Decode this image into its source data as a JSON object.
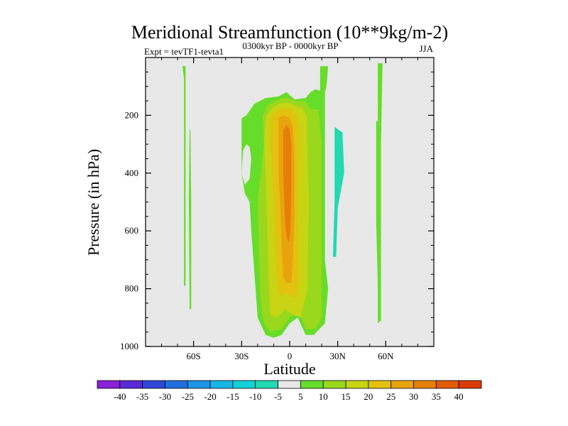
{
  "chart_data": {
    "type": "contour",
    "title": "Meridional Streamfunction (10**9kg/m-2)",
    "subtitle_left": "Expt = tevTF1-tevta1",
    "subtitle_center": "0300kyr BP - 0000kyr BP",
    "subtitle_right": "JJA",
    "xlabel": "Latitude",
    "ylabel": "Pressure (in hPa)",
    "xlim": [
      -90,
      90
    ],
    "ylim": [
      1000,
      0
    ],
    "xticks": [
      {
        "value": -60,
        "label": "60S"
      },
      {
        "value": -30,
        "label": "30S"
      },
      {
        "value": 0,
        "label": "0"
      },
      {
        "value": 30,
        "label": "30N"
      },
      {
        "value": 60,
        "label": "60N"
      }
    ],
    "yticks": [
      {
        "value": 200,
        "label": "200"
      },
      {
        "value": 400,
        "label": "400"
      },
      {
        "value": 600,
        "label": "600"
      },
      {
        "value": 800,
        "label": "800"
      },
      {
        "value": 1000,
        "label": "1000"
      }
    ],
    "background_color": "#e8e8e8",
    "colorbar": {
      "labels": [
        "-40",
        "-35",
        "-30",
        "-25",
        "-20",
        "-15",
        "-10",
        "-5",
        "5",
        "10",
        "15",
        "20",
        "25",
        "30",
        "35",
        "40"
      ],
      "colors": [
        "#8a22d8",
        "#5a2ad6",
        "#2f47d8",
        "#1f6fe0",
        "#1f95e6",
        "#18b5e6",
        "#10d2d8",
        "#22d9b2",
        "#e8e8e8",
        "#66dd2b",
        "#9ad81d",
        "#c8d414",
        "#e2c20f",
        "#e9a30d",
        "#e67f0a",
        "#e35a08",
        "#dd3a06"
      ]
    },
    "contours": [
      {
        "level": "5",
        "color": "#66dd2b",
        "points": [
          [
            -67,
            30
          ],
          [
            -66,
            70
          ],
          [
            -66,
            300
          ],
          [
            -66,
            790
          ],
          [
            -65,
            790
          ],
          [
            -65,
            300
          ],
          [
            -65,
            30
          ]
        ]
      },
      {
        "level": "5",
        "color": "#66dd2b",
        "points": [
          [
            -62.5,
            250
          ],
          [
            -63,
            500
          ],
          [
            -62.5,
            870
          ],
          [
            -61.5,
            870
          ],
          [
            -61.5,
            500
          ],
          [
            -62,
            250
          ]
        ]
      },
      {
        "level": "5",
        "color": "#66dd2b",
        "points": [
          [
            -30,
            210
          ],
          [
            -27,
            200
          ],
          [
            -22,
            160
          ],
          [
            -15,
            140
          ],
          [
            -7,
            135
          ],
          [
            -2,
            120
          ],
          [
            0,
            130
          ],
          [
            3,
            145
          ],
          [
            10,
            140
          ],
          [
            13,
            120
          ],
          [
            16,
            110
          ],
          [
            22,
            120
          ],
          [
            22,
            700
          ],
          [
            24,
            800
          ],
          [
            22,
            920
          ],
          [
            15,
            960
          ],
          [
            10,
            960
          ],
          [
            5,
            900
          ],
          [
            0,
            920
          ],
          [
            -5,
            960
          ],
          [
            -10,
            970
          ],
          [
            -15,
            960
          ],
          [
            -20,
            900
          ],
          [
            -22,
            750
          ],
          [
            -24,
            600
          ],
          [
            -25,
            500
          ],
          [
            -28,
            470
          ],
          [
            -30,
            400
          ],
          [
            -30,
            300
          ]
        ]
      },
      {
        "level": "5",
        "color": "#66dd2b",
        "points": [
          [
            19,
            30
          ],
          [
            19,
            500
          ],
          [
            20,
            700
          ],
          [
            22,
            700
          ],
          [
            22,
            120
          ],
          [
            23,
            100
          ],
          [
            24,
            30
          ]
        ]
      },
      {
        "level": "5",
        "color": "#66dd2b",
        "points": [
          [
            55,
            20
          ],
          [
            55,
            300
          ],
          [
            55,
            920
          ],
          [
            57,
            910
          ],
          [
            57,
            300
          ],
          [
            58,
            20
          ]
        ]
      },
      {
        "level": "5",
        "color": "#66dd2b",
        "points": [
          [
            54,
            220
          ],
          [
            54,
            560
          ],
          [
            55,
            790
          ],
          [
            55.5,
            560
          ],
          [
            55,
            220
          ]
        ]
      },
      {
        "level": "-5",
        "color": "#22d9b2",
        "points": [
          [
            28,
            240
          ],
          [
            33,
            260
          ],
          [
            34,
            400
          ],
          [
            30,
            520
          ],
          [
            29,
            690
          ],
          [
            27,
            690
          ],
          [
            28,
            500
          ],
          [
            28,
            400
          ]
        ]
      },
      {
        "level": "10",
        "color": "#9ad81d",
        "points": [
          [
            -17,
            205
          ],
          [
            -14,
            165
          ],
          [
            -7,
            145
          ],
          [
            -2,
            138
          ],
          [
            4,
            150
          ],
          [
            10,
            152
          ],
          [
            13,
            180
          ],
          [
            18,
            180
          ],
          [
            20,
            300
          ],
          [
            20,
            500
          ],
          [
            20,
            900
          ],
          [
            16,
            940
          ],
          [
            10,
            940
          ],
          [
            6,
            880
          ],
          [
            0,
            900
          ],
          [
            -5,
            940
          ],
          [
            -12,
            950
          ],
          [
            -16,
            920
          ],
          [
            -18,
            850
          ],
          [
            -19,
            700
          ],
          [
            -20,
            500
          ],
          [
            -18,
            400
          ],
          [
            -16,
            300
          ]
        ]
      },
      {
        "level": "15",
        "color": "#c8d414",
        "points": [
          [
            -15,
            205
          ],
          [
            -11,
            175
          ],
          [
            -6,
            160
          ],
          [
            -1,
            155
          ],
          [
            3,
            165
          ],
          [
            8,
            175
          ],
          [
            11,
            210
          ],
          [
            11,
            300
          ],
          [
            12,
            500
          ],
          [
            11,
            800
          ],
          [
            7,
            900
          ],
          [
            2,
            890
          ],
          [
            -3,
            870
          ],
          [
            -8,
            900
          ],
          [
            -12,
            890
          ],
          [
            -13,
            800
          ],
          [
            -14,
            600
          ],
          [
            -15,
            400
          ],
          [
            -16,
            300
          ]
        ]
      },
      {
        "level": "20",
        "color": "#e2c20f",
        "points": [
          [
            -12,
            210
          ],
          [
            -8,
            185
          ],
          [
            -4,
            175
          ],
          [
            1,
            180
          ],
          [
            4,
            200
          ],
          [
            6,
            240
          ],
          [
            6,
            350
          ],
          [
            5,
            550
          ],
          [
            6,
            770
          ],
          [
            4,
            830
          ],
          [
            1,
            830
          ],
          [
            -2,
            810
          ],
          [
            -6,
            830
          ],
          [
            -8,
            780
          ],
          [
            -9,
            650
          ],
          [
            -10,
            500
          ],
          [
            -11,
            400
          ],
          [
            -12,
            300
          ]
        ]
      },
      {
        "level": "25",
        "color": "#e9a30d",
        "points": [
          [
            -7,
            210
          ],
          [
            -4,
            200
          ],
          [
            0,
            210
          ],
          [
            2,
            240
          ],
          [
            3,
            350
          ],
          [
            3,
            550
          ],
          [
            2,
            700
          ],
          [
            1,
            780
          ],
          [
            -2,
            780
          ],
          [
            -4,
            760
          ],
          [
            -5,
            650
          ],
          [
            -6,
            500
          ],
          [
            -7,
            400
          ],
          [
            -7,
            300
          ]
        ]
      },
      {
        "level": "30",
        "color": "#e67f0a",
        "points": [
          [
            -4,
            250
          ],
          [
            -2,
            235
          ],
          [
            0,
            245
          ],
          [
            1,
            300
          ],
          [
            1,
            450
          ],
          [
            0.5,
            600
          ],
          [
            -0.5,
            640
          ],
          [
            -2,
            620
          ],
          [
            -3,
            550
          ],
          [
            -4,
            400
          ]
        ]
      },
      {
        "level": "5",
        "color": "#e8e8e8",
        "points": [
          [
            -29,
            320
          ],
          [
            -27,
            300
          ],
          [
            -25,
            310
          ],
          [
            -24,
            350
          ],
          [
            -25,
            420
          ],
          [
            -28,
            440
          ],
          [
            -30,
            400
          ]
        ]
      }
    ]
  }
}
